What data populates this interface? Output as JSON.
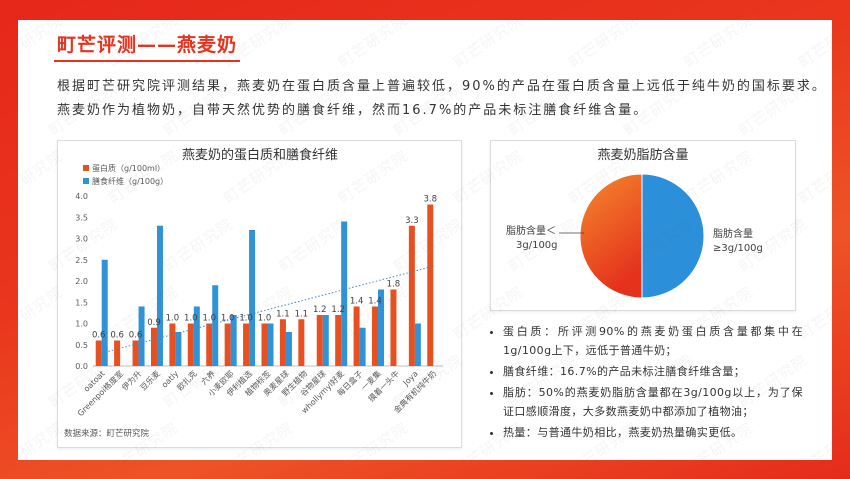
{
  "title": "町芒评测——燕麦奶",
  "intro_lines": [
    "根据町芒研究院评测结果，燕麦奶在蛋白质含量上普遍较低，90%的产品在蛋白质含量上远低于纯牛奶的国标要求。",
    "燕麦奶作为植物奶，自带天然优势的膳食纤维，然而16.7%的产品未标注膳食纤维含量。"
  ],
  "watermark": "町芒研究院",
  "colors": {
    "frame": "#e62c1c",
    "title": "#e8321e",
    "protein": "#e8501f",
    "fiber": "#3093d8",
    "trendline": "#4a86c8"
  },
  "chart_data": [
    {
      "type": "bar",
      "title": "燕麦奶的蛋白质和膳食纤维",
      "categories": [
        "oatoat",
        "Greenpoi格度室",
        "伊为升",
        "豆乐麦",
        "oatly",
        "欧扎克",
        "六养",
        "小麦欧耶",
        "伊利植选",
        "植物标签",
        "奥麦星球",
        "野生植物",
        "谷物星球",
        "whollymyl好麦",
        "每日盒子",
        "一麦集",
        "摸着一头牛",
        "Joya",
        "金典有机纯牛奶"
      ],
      "series": [
        {
          "name": "蛋白质（g/100ml）",
          "color": "#e8501f",
          "data_labels": true,
          "trendline": true,
          "values": [
            0.6,
            0.6,
            0.6,
            0.9,
            1.0,
            1.0,
            1.0,
            1.0,
            1.0,
            1.0,
            1.1,
            1.1,
            1.2,
            1.2,
            1.4,
            1.4,
            1.8,
            3.3,
            3.8
          ]
        },
        {
          "name": "膳食纤维（g/100g）",
          "color": "#3093d8",
          "data_labels": false,
          "trendline": false,
          "values": [
            2.5,
            null,
            1.4,
            3.3,
            0.8,
            1.4,
            1.9,
            1.2,
            3.2,
            1.0,
            0.8,
            null,
            1.2,
            3.4,
            0.9,
            1.8,
            null,
            1.0,
            null
          ]
        }
      ],
      "ylim": [
        0,
        4.0
      ],
      "yticks": [
        "0.0",
        "0.5",
        "1.0",
        "1.5",
        "2.0",
        "2.5",
        "3.0",
        "3.5",
        "4.0"
      ],
      "grid": false,
      "legend": "top-left",
      "source": "数据来源：町芒研究院"
    },
    {
      "type": "pie",
      "title": "燕麦奶脂肪含量",
      "slices": [
        {
          "label_lines": [
            "脂肪含量＜",
            "3g/100g"
          ],
          "value": 50,
          "color": "#ee5a24",
          "gradient": [
            "#f58a2c",
            "#e5321d"
          ]
        },
        {
          "label_lines": [
            "脂肪含量",
            "≥3g/100g"
          ],
          "value": 50,
          "color": "#2b8fd9",
          "gradient": [
            "#2b8fd9",
            "#2b8fd9"
          ]
        }
      ]
    }
  ],
  "bullets": [
    "蛋白质：所评测90%的燕麦奶蛋白质含量都集中在1g/100g上下，远低于普通牛奶；",
    "膳食纤维：16.7%的产品未标注膳食纤维含量；",
    "脂肪：50%的燕麦奶脂肪含量都在3g/100g以上，为了保证口感顺滑度，大多数燕麦奶中都添加了植物油；",
    "热量：与普通牛奶相比，燕麦奶热量确实更低。"
  ]
}
